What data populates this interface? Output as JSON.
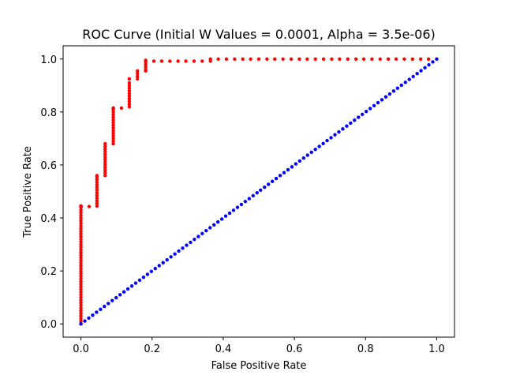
{
  "chart_data": {
    "type": "scatter",
    "title": "ROC Curve (Initial W Values = 0.0001, Alpha = 3.5e-06)",
    "xlabel": "False Positive Rate",
    "ylabel": "True Positive Rate",
    "xlim": [
      -0.05,
      1.05
    ],
    "ylim": [
      -0.05,
      1.05
    ],
    "xticks": [
      "0.0",
      "0.2",
      "0.4",
      "0.6",
      "0.8",
      "1.0"
    ],
    "xtick_values": [
      0.0,
      0.2,
      0.4,
      0.6,
      0.8,
      1.0
    ],
    "yticks": [
      "0.0",
      "0.2",
      "0.4",
      "0.6",
      "0.8",
      "1.0"
    ],
    "ytick_values": [
      0.0,
      0.2,
      0.4,
      0.6,
      0.8,
      1.0
    ],
    "grid": false,
    "series": [
      {
        "color": "#ff0000",
        "x": [
          0.0,
          0.0,
          0.0,
          0.0,
          0.0,
          0.0,
          0.0,
          0.0,
          0.0,
          0.0,
          0.0,
          0.0,
          0.0,
          0.0,
          0.0,
          0.0,
          0.0,
          0.0,
          0.0,
          0.0,
          0.0,
          0.0,
          0.0,
          0.0,
          0.0,
          0.0,
          0.0,
          0.0,
          0.0,
          0.0,
          0.0,
          0.0,
          0.0,
          0.0,
          0.0,
          0.0,
          0.0,
          0.0,
          0.0,
          0.0,
          0.0,
          0.0,
          0.0,
          0.0,
          0.0,
          0.0,
          0.0,
          0.0,
          0.023,
          0.045,
          0.045,
          0.045,
          0.045,
          0.045,
          0.045,
          0.045,
          0.045,
          0.045,
          0.045,
          0.045,
          0.045,
          0.045,
          0.068,
          0.068,
          0.068,
          0.068,
          0.068,
          0.068,
          0.068,
          0.068,
          0.068,
          0.068,
          0.068,
          0.068,
          0.068,
          0.091,
          0.091,
          0.091,
          0.091,
          0.091,
          0.091,
          0.091,
          0.091,
          0.091,
          0.091,
          0.091,
          0.091,
          0.091,
          0.091,
          0.091,
          0.091,
          0.114,
          0.136,
          0.136,
          0.136,
          0.136,
          0.136,
          0.136,
          0.136,
          0.136,
          0.136,
          0.136,
          0.136,
          0.159,
          0.159,
          0.159,
          0.159,
          0.182,
          0.182,
          0.182,
          0.182,
          0.182,
          0.182,
          0.205,
          0.227,
          0.25,
          0.273,
          0.295,
          0.318,
          0.341,
          0.364,
          0.364,
          0.386,
          0.409,
          0.432,
          0.455,
          0.477,
          0.5,
          0.523,
          0.545,
          0.568,
          0.591,
          0.614,
          0.636,
          0.659,
          0.682,
          0.705,
          0.727,
          0.75,
          0.773,
          0.795,
          0.818,
          0.841,
          0.864,
          0.886,
          0.909,
          0.932,
          0.955,
          0.977,
          1.0
        ],
        "y": [
          0.0,
          0.01,
          0.02,
          0.03,
          0.04,
          0.05,
          0.06,
          0.07,
          0.08,
          0.09,
          0.1,
          0.11,
          0.12,
          0.13,
          0.14,
          0.15,
          0.16,
          0.17,
          0.18,
          0.19,
          0.2,
          0.21,
          0.22,
          0.23,
          0.24,
          0.25,
          0.26,
          0.27,
          0.28,
          0.29,
          0.3,
          0.31,
          0.32,
          0.33,
          0.34,
          0.35,
          0.36,
          0.37,
          0.38,
          0.39,
          0.4,
          0.41,
          0.42,
          0.43,
          0.44,
          0.445,
          0.445,
          0.445,
          0.443,
          0.445,
          0.455,
          0.465,
          0.475,
          0.485,
          0.495,
          0.505,
          0.515,
          0.525,
          0.535,
          0.545,
          0.555,
          0.56,
          0.56,
          0.57,
          0.58,
          0.59,
          0.6,
          0.61,
          0.62,
          0.63,
          0.64,
          0.65,
          0.66,
          0.67,
          0.68,
          0.68,
          0.69,
          0.7,
          0.71,
          0.72,
          0.73,
          0.74,
          0.75,
          0.76,
          0.77,
          0.78,
          0.79,
          0.8,
          0.81,
          0.815,
          0.815,
          0.815,
          0.82,
          0.83,
          0.84,
          0.85,
          0.86,
          0.87,
          0.88,
          0.89,
          0.9,
          0.91,
          0.925,
          0.925,
          0.935,
          0.945,
          0.955,
          0.955,
          0.96,
          0.97,
          0.98,
          0.99,
          0.995,
          0.992,
          0.992,
          0.992,
          0.992,
          0.992,
          0.992,
          0.992,
          0.992,
          1.0,
          1.0,
          1.0,
          1.0,
          1.0,
          1.0,
          1.0,
          1.0,
          1.0,
          1.0,
          1.0,
          1.0,
          1.0,
          1.0,
          1.0,
          1.0,
          1.0,
          1.0,
          1.0,
          1.0,
          1.0,
          1.0,
          1.0,
          1.0,
          1.0,
          1.0,
          1.0,
          1.0,
          1.0
        ]
      },
      {
        "color": "#0000ff",
        "x": [
          0.0,
          0.011,
          0.022,
          0.033,
          0.044,
          0.055,
          0.066,
          0.077,
          0.088,
          0.099,
          0.11,
          0.121,
          0.132,
          0.143,
          0.154,
          0.165,
          0.176,
          0.187,
          0.198,
          0.209,
          0.22,
          0.231,
          0.242,
          0.253,
          0.264,
          0.275,
          0.286,
          0.297,
          0.308,
          0.319,
          0.33,
          0.341,
          0.352,
          0.363,
          0.374,
          0.385,
          0.396,
          0.407,
          0.418,
          0.429,
          0.44,
          0.451,
          0.462,
          0.473,
          0.484,
          0.495,
          0.505,
          0.516,
          0.527,
          0.538,
          0.549,
          0.56,
          0.571,
          0.582,
          0.593,
          0.604,
          0.615,
          0.626,
          0.637,
          0.648,
          0.659,
          0.67,
          0.681,
          0.692,
          0.703,
          0.714,
          0.725,
          0.736,
          0.747,
          0.758,
          0.769,
          0.78,
          0.791,
          0.802,
          0.813,
          0.824,
          0.835,
          0.846,
          0.857,
          0.868,
          0.879,
          0.89,
          0.901,
          0.912,
          0.923,
          0.934,
          0.945,
          0.956,
          0.967,
          0.978,
          0.989,
          1.0
        ],
        "y": [
          0.0,
          0.011,
          0.022,
          0.033,
          0.044,
          0.055,
          0.066,
          0.077,
          0.088,
          0.099,
          0.11,
          0.121,
          0.132,
          0.143,
          0.154,
          0.165,
          0.176,
          0.187,
          0.198,
          0.209,
          0.22,
          0.231,
          0.242,
          0.253,
          0.264,
          0.275,
          0.286,
          0.297,
          0.308,
          0.319,
          0.33,
          0.341,
          0.352,
          0.363,
          0.374,
          0.385,
          0.396,
          0.407,
          0.418,
          0.429,
          0.44,
          0.451,
          0.462,
          0.473,
          0.484,
          0.495,
          0.505,
          0.516,
          0.527,
          0.538,
          0.549,
          0.56,
          0.571,
          0.582,
          0.593,
          0.604,
          0.615,
          0.626,
          0.637,
          0.648,
          0.659,
          0.67,
          0.681,
          0.692,
          0.703,
          0.714,
          0.725,
          0.736,
          0.747,
          0.758,
          0.769,
          0.78,
          0.791,
          0.802,
          0.813,
          0.824,
          0.835,
          0.846,
          0.857,
          0.868,
          0.879,
          0.89,
          0.901,
          0.912,
          0.923,
          0.934,
          0.945,
          0.956,
          0.967,
          0.978,
          0.989,
          1.0
        ]
      }
    ]
  }
}
